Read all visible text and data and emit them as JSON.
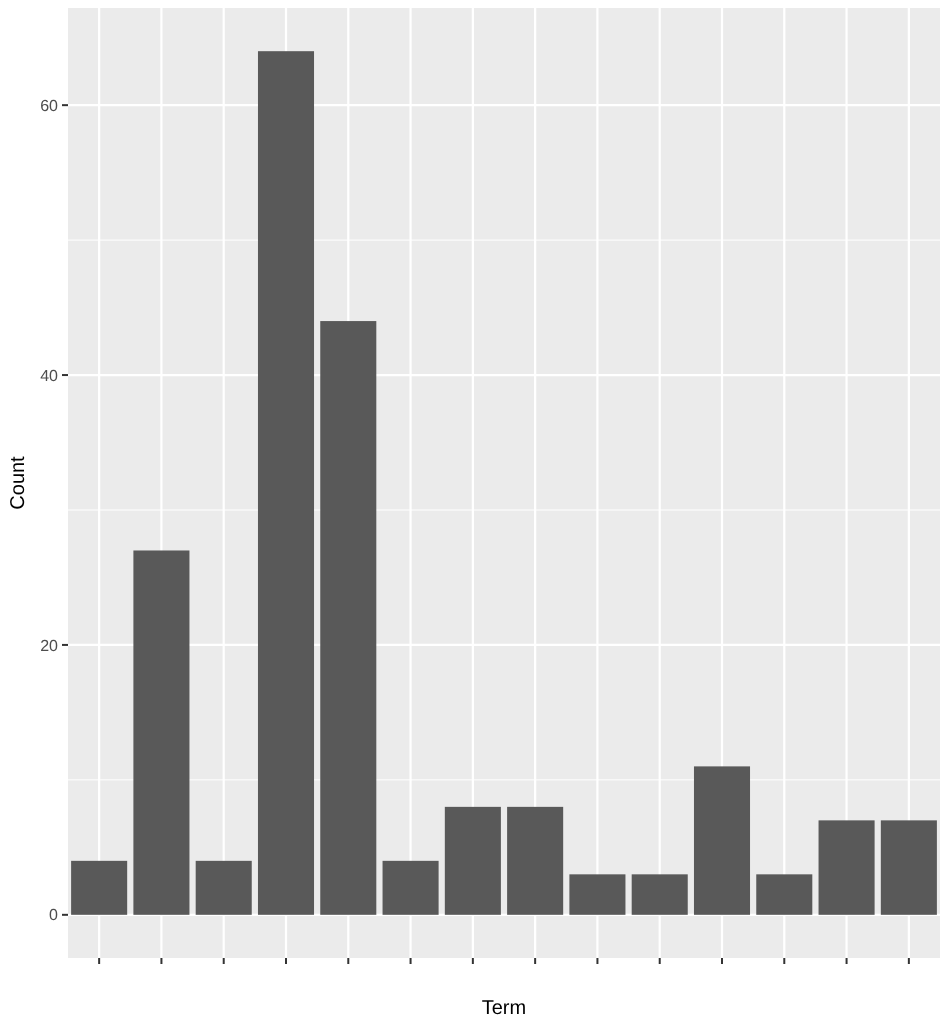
{
  "chart_data": {
    "type": "bar",
    "xlabel": "Term",
    "ylabel": "Count",
    "categories": [
      null,
      null,
      null,
      null,
      null,
      null,
      null,
      null,
      null,
      null,
      null,
      null,
      null,
      null
    ],
    "values": [
      4,
      27,
      4,
      64,
      44,
      4,
      8,
      8,
      3,
      3,
      11,
      3,
      7,
      7
    ],
    "color": "#595959",
    "ylim": [
      -3.2,
      67.2
    ],
    "yticks": [
      0,
      20,
      40,
      60
    ],
    "grid": true
  }
}
